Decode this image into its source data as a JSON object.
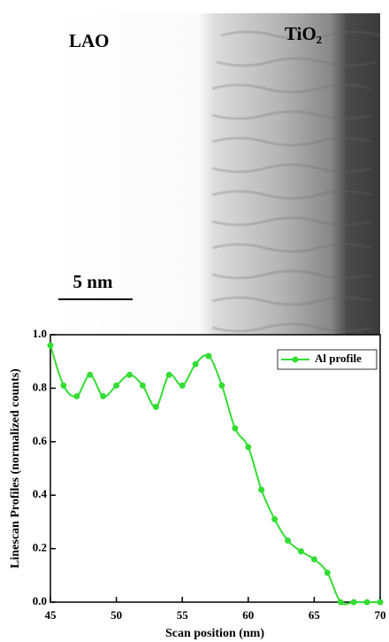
{
  "image_labels": {
    "left": "LAO",
    "right": "TiO₂",
    "scale_bar": "5 nm"
  },
  "chart_data": {
    "type": "line",
    "xlabel": "Scan position (nm)",
    "ylabel": "Linescan Profiles (normalized counts)",
    "x": [
      45,
      46,
      47,
      48,
      49,
      50,
      51,
      52,
      53,
      54,
      55,
      56,
      57,
      58,
      59,
      60,
      61,
      62,
      63,
      64,
      65,
      66,
      67,
      68,
      69,
      70
    ],
    "series": [
      {
        "name": "Al profile",
        "color": "#33dd33",
        "values": [
          0.96,
          0.81,
          0.77,
          0.85,
          0.77,
          0.81,
          0.85,
          0.81,
          0.73,
          0.85,
          0.81,
          0.89,
          0.92,
          0.81,
          0.65,
          0.58,
          0.42,
          0.31,
          0.23,
          0.19,
          0.16,
          0.11,
          0.0,
          0.0,
          0.0,
          0.0
        ]
      }
    ],
    "xlim": [
      45,
      70
    ],
    "xticks": [
      45,
      50,
      55,
      60,
      65,
      70
    ],
    "ylim": [
      0,
      1.0
    ],
    "yticks": [
      {
        "value": 0,
        "label": "0.0"
      },
      0.2,
      0.4,
      0.6,
      0.8,
      {
        "value": 1.0,
        "label": "1.0"
      }
    ],
    "legend": "upper right"
  }
}
